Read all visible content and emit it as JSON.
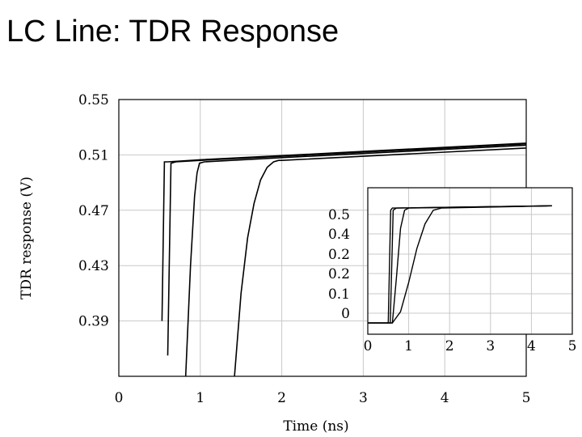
{
  "title": "LC Line: TDR Response",
  "chart_data": [
    {
      "type": "line",
      "xlabel": "Time (ns)",
      "ylabel": "TDR response (V)",
      "xlim": [
        0,
        5
      ],
      "ylim": [
        0.35,
        0.55
      ],
      "x_ticks": [
        "0",
        "1",
        "2",
        "3",
        "4",
        "5"
      ],
      "y_ticks": [
        "0.55",
        "0.51",
        "0.47",
        "0.43",
        "0.39"
      ],
      "grid": true,
      "series": [
        {
          "x": [
            0.53,
            0.56,
            0.6,
            1.0,
            2.0,
            3.0,
            4.0,
            5.0
          ],
          "y": [
            0.39,
            0.505,
            0.505,
            0.5065,
            0.5095,
            0.5125,
            0.5155,
            0.5185
          ]
        },
        {
          "x": [
            0.6,
            0.64,
            0.7,
            1.0,
            2.0,
            3.0,
            4.0,
            5.0
          ],
          "y": [
            0.365,
            0.504,
            0.505,
            0.506,
            0.509,
            0.512,
            0.515,
            0.518
          ]
        },
        {
          "x": [
            0.82,
            0.88,
            0.93,
            0.96,
            0.99,
            1.05,
            2.0,
            3.0,
            4.0,
            5.0
          ],
          "y": [
            0.35,
            0.43,
            0.48,
            0.497,
            0.504,
            0.505,
            0.508,
            0.511,
            0.514,
            0.517
          ]
        },
        {
          "x": [
            1.42,
            1.5,
            1.58,
            1.66,
            1.74,
            1.82,
            1.9,
            1.96,
            2.0,
            3.0,
            4.0,
            5.0
          ],
          "y": [
            0.35,
            0.41,
            0.45,
            0.475,
            0.492,
            0.501,
            0.505,
            0.506,
            0.506,
            0.509,
            0.512,
            0.515
          ]
        }
      ]
    },
    {
      "type": "line",
      "inset": true,
      "xlim": [
        0,
        5
      ],
      "ylim": [
        -0.05,
        0.6
      ],
      "x_ticks": [
        "0",
        "1",
        "2",
        "3",
        "4",
        "5"
      ],
      "y_ticks": [
        "0.5",
        "0.4",
        "0.2",
        "0.2",
        "0.1",
        "0"
      ],
      "grid": true,
      "series": [
        {
          "x": [
            0,
            0.5,
            0.56,
            0.6,
            0.7,
            4.5
          ],
          "y": [
            0,
            0,
            0.5,
            0.51,
            0.51,
            0.52
          ]
        },
        {
          "x": [
            0,
            0.55,
            0.62,
            0.7,
            4.5
          ],
          "y": [
            0,
            0,
            0.5,
            0.51,
            0.52
          ]
        },
        {
          "x": [
            0,
            0.6,
            0.7,
            0.8,
            0.9,
            1.0,
            4.5
          ],
          "y": [
            0,
            0,
            0.2,
            0.42,
            0.5,
            0.51,
            0.52
          ]
        },
        {
          "x": [
            0,
            0.6,
            0.8,
            1.0,
            1.2,
            1.4,
            1.6,
            1.8,
            4.5
          ],
          "y": [
            0,
            0,
            0.05,
            0.18,
            0.33,
            0.44,
            0.5,
            0.51,
            0.52
          ]
        }
      ]
    }
  ]
}
